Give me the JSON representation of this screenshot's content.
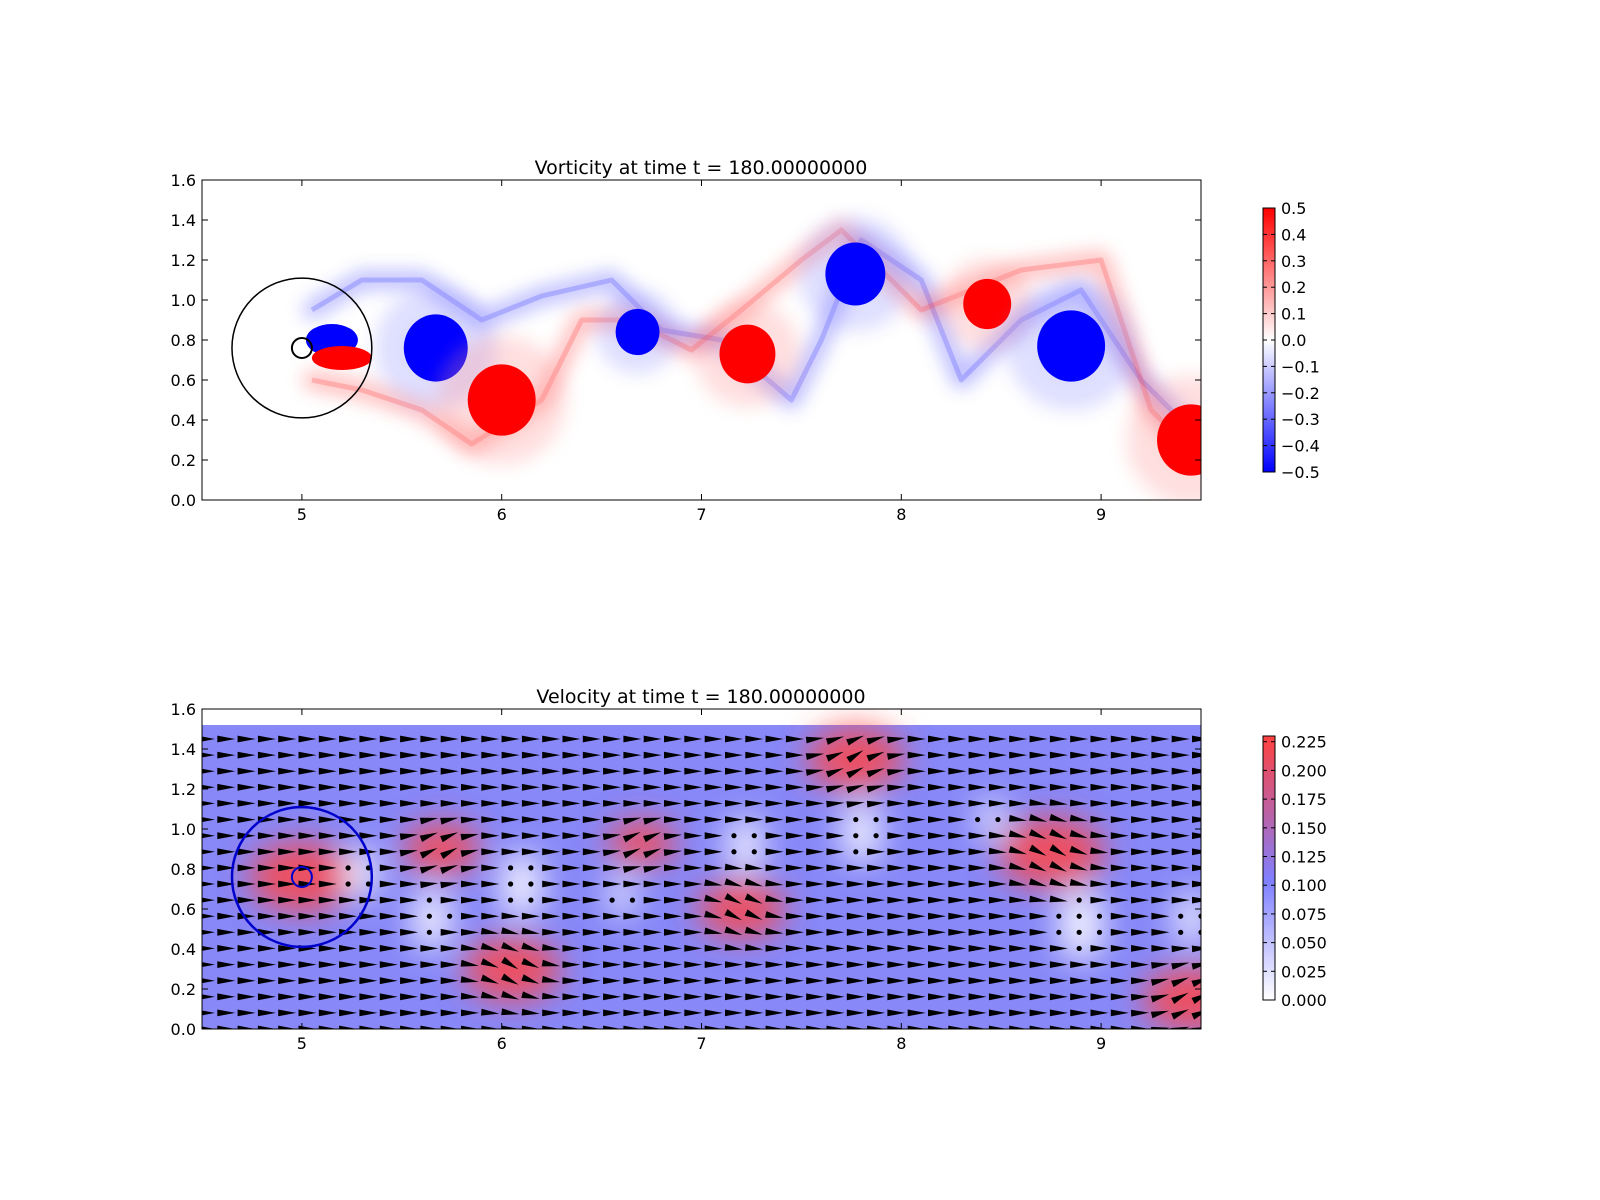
{
  "chart_data": [
    {
      "type": "heatmap",
      "title": "Vorticity at time t =   180.00000000",
      "xlabel": "",
      "ylabel": "",
      "xlim": [
        4.5,
        9.5
      ],
      "ylim": [
        0.0,
        1.6
      ],
      "xticks": [
        "5",
        "6",
        "7",
        "8",
        "9"
      ],
      "yticks": [
        "0.0",
        "0.2",
        "0.4",
        "0.6",
        "0.8",
        "1.0",
        "1.2",
        "1.4",
        "1.6"
      ],
      "colorbar": {
        "range": [
          -0.5,
          0.5
        ],
        "ticks": [
          "0.5",
          "0.4",
          "0.3",
          "0.2",
          "0.1",
          "0.0",
          "−0.1",
          "−0.2",
          "−0.3",
          "−0.4",
          "−0.5"
        ],
        "colors": {
          "low": "#0000ff",
          "mid": "#ffffff",
          "high": "#ff0000"
        }
      },
      "vortices": [
        {
          "x": 5.67,
          "y": 0.76,
          "r": 0.16,
          "w": -0.5
        },
        {
          "x": 6.0,
          "y": 0.5,
          "r": 0.17,
          "w": 0.5
        },
        {
          "x": 6.68,
          "y": 0.84,
          "r": 0.11,
          "w": -0.5
        },
        {
          "x": 7.23,
          "y": 0.73,
          "r": 0.14,
          "w": 0.5
        },
        {
          "x": 7.77,
          "y": 1.13,
          "r": 0.15,
          "w": -0.5
        },
        {
          "x": 8.43,
          "y": 0.98,
          "r": 0.12,
          "w": 0.5
        },
        {
          "x": 8.85,
          "y": 0.77,
          "r": 0.17,
          "w": -0.5
        },
        {
          "x": 9.45,
          "y": 0.3,
          "r": 0.17,
          "w": 0.5
        }
      ],
      "obstacle": {
        "center": [
          5.0,
          0.76
        ],
        "inner_r": 0.05,
        "outer_r": 0.35
      }
    },
    {
      "type": "heatmap",
      "title": "Velocity at time t =   180.00000000",
      "xlabel": "",
      "ylabel": "",
      "xlim": [
        4.5,
        9.5
      ],
      "ylim": [
        0.0,
        1.6
      ],
      "xticks": [
        "5",
        "6",
        "7",
        "8",
        "9"
      ],
      "yticks": [
        "0.0",
        "0.2",
        "0.4",
        "0.6",
        "0.8",
        "1.0",
        "1.2",
        "1.4",
        "1.6"
      ],
      "field_ymax": 1.52,
      "colorbar": {
        "range": [
          0.0,
          0.23
        ],
        "ticks": [
          "0.225",
          "0.200",
          "0.175",
          "0.150",
          "0.125",
          "0.100",
          "0.075",
          "0.050",
          "0.025",
          "0.000"
        ],
        "colors": {
          "low": "#ffffff",
          "mid": "#8080ff",
          "high": "#ff4040"
        }
      },
      "background_speed": 0.1,
      "hot_spots": [
        {
          "x": 5.0,
          "y": 0.76,
          "r": 0.22,
          "s": 0.2
        },
        {
          "x": 5.7,
          "y": 0.9,
          "r": 0.16,
          "s": 0.21
        },
        {
          "x": 6.05,
          "y": 0.3,
          "r": 0.2,
          "s": 0.23
        },
        {
          "x": 6.7,
          "y": 0.93,
          "r": 0.14,
          "s": 0.2
        },
        {
          "x": 7.2,
          "y": 0.6,
          "r": 0.18,
          "s": 0.22
        },
        {
          "x": 7.77,
          "y": 1.35,
          "r": 0.2,
          "s": 0.22
        },
        {
          "x": 8.75,
          "y": 0.88,
          "r": 0.22,
          "s": 0.23
        },
        {
          "x": 9.45,
          "y": 0.15,
          "r": 0.2,
          "s": 0.23
        }
      ],
      "calm_spots": [
        {
          "x": 5.3,
          "y": 0.78,
          "r": 0.1
        },
        {
          "x": 5.65,
          "y": 0.55,
          "r": 0.12
        },
        {
          "x": 6.1,
          "y": 0.72,
          "r": 0.13
        },
        {
          "x": 6.6,
          "y": 0.67,
          "r": 0.08
        },
        {
          "x": 7.22,
          "y": 0.92,
          "r": 0.11
        },
        {
          "x": 7.8,
          "y": 0.98,
          "r": 0.12
        },
        {
          "x": 8.45,
          "y": 1.05,
          "r": 0.08
        },
        {
          "x": 8.9,
          "y": 0.52,
          "r": 0.14
        },
        {
          "x": 9.45,
          "y": 0.55,
          "r": 0.1
        }
      ],
      "obstacle": {
        "center": [
          5.0,
          0.76
        ],
        "inner_r": 0.05,
        "outer_r": 0.35
      }
    }
  ]
}
